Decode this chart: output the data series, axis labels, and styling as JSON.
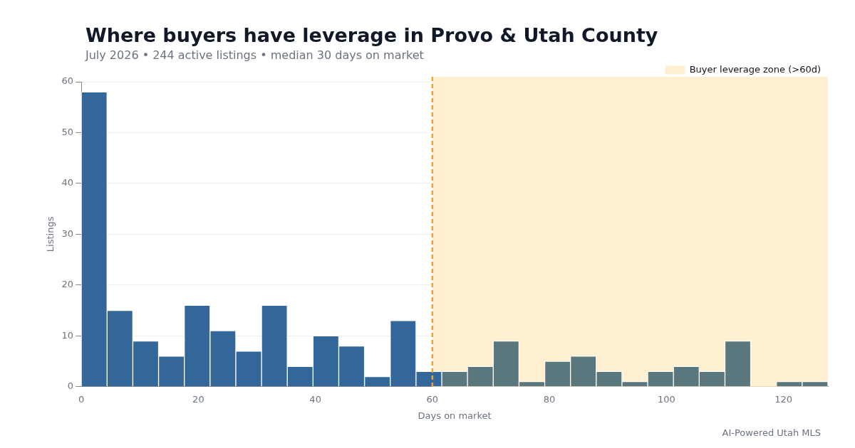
{
  "chart_data": {
    "type": "histogram",
    "title": "Where buyers have leverage in Provo & Utah County",
    "subtitle": "July 2026 • 244 active listings • median 30 days on market",
    "xlabel": "Days on market",
    "ylabel": "Listings",
    "bins": [
      0,
      4.4,
      8.8,
      13.2,
      17.6,
      22,
      26.4,
      30.8,
      35.2,
      39.6,
      44,
      48.4,
      52.8,
      57.2,
      61.6,
      66,
      70.4,
      74.8,
      79.2,
      83.6,
      88,
      92.4,
      96.8,
      101.2,
      105.6,
      110,
      114.4,
      118.8,
      123.2,
      127.6
    ],
    "values": [
      58,
      15,
      9,
      6,
      16,
      11,
      7,
      16,
      4,
      10,
      8,
      2,
      13,
      3,
      3,
      4,
      9,
      1,
      5,
      6,
      3,
      1,
      3,
      4,
      3,
      9,
      0,
      1,
      1
    ],
    "colors": [
      "#336699",
      "#336699",
      "#336699",
      "#336699",
      "#336699",
      "#336699",
      "#336699",
      "#336699",
      "#336699",
      "#336699",
      "#336699",
      "#336699",
      "#336699",
      "#336699",
      "#5a777e",
      "#5a777e",
      "#5a777e",
      "#5a777e",
      "#5a777e",
      "#5a777e",
      "#5a777e",
      "#5a777e",
      "#5a777e",
      "#5a777e",
      "#5a777e",
      "#5a777e",
      "#5a777e",
      "#5a777e",
      "#5a777e"
    ],
    "xlim": [
      0,
      127.6
    ],
    "xticks": [
      0,
      20,
      40,
      60,
      80,
      100,
      120
    ],
    "ylim": [
      0,
      60
    ],
    "yticks": [
      0,
      10,
      20,
      30,
      40,
      50,
      60
    ],
    "ref_lines": [
      {
        "axis": "x",
        "value": 60,
        "color": "#f0a030",
        "line_style": "dashed"
      }
    ],
    "bands": [
      {
        "axis": "x",
        "from": 60,
        "to": 127.6,
        "label": "Buyer leverage zone (>60d)",
        "color": "#fff0d2"
      }
    ],
    "grid": "y",
    "legend": "top right",
    "annotations": [
      "AI-Powered Utah MLS"
    ]
  }
}
